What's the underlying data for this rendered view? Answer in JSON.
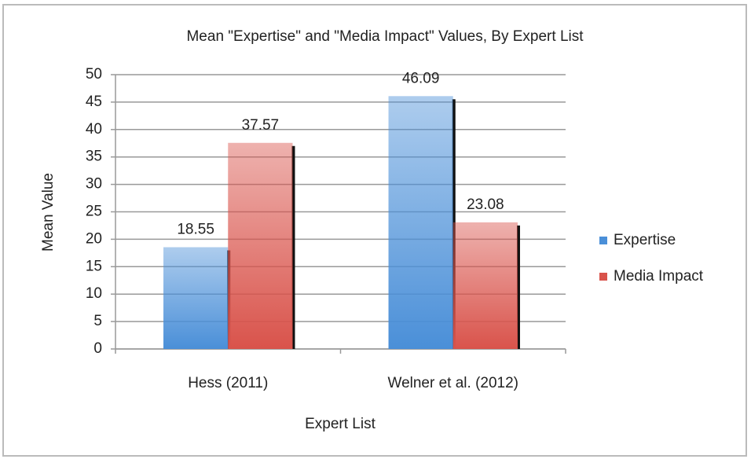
{
  "chart_data": {
    "type": "bar",
    "title": "Mean \"Expertise\" and \"Media Impact\" Values, By Expert List",
    "xlabel": "Expert List",
    "ylabel": "Mean Value",
    "categories": [
      "Hess (2011)",
      "Welner et al. (2012)"
    ],
    "series": [
      {
        "name": "Expertise",
        "color": "#4a8fd8",
        "values": [
          18.55,
          46.09
        ]
      },
      {
        "name": "Media Impact",
        "color": "#d9534b",
        "values": [
          37.57,
          23.08
        ]
      }
    ],
    "ylim": [
      0,
      50
    ],
    "yticks": [
      0,
      5,
      10,
      15,
      20,
      25,
      30,
      35,
      40,
      45,
      50
    ],
    "grid": true,
    "legend": "right"
  }
}
